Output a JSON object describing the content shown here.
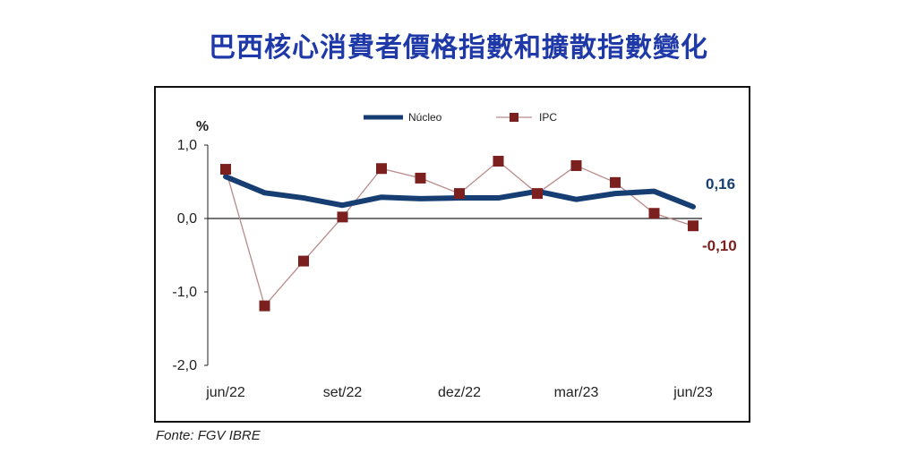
{
  "title": "巴西核心消費者價格指數和擴散指數變化",
  "source": "Fonte: FGV IBRE",
  "colors": {
    "title": "#1f3aa8",
    "nucleo": "#173e72",
    "ipc": "#7b1f1f",
    "ipc_line": "#b98a8a"
  },
  "chart_data": {
    "type": "line",
    "ylabel": "%",
    "ylim": [
      -2.0,
      1.0
    ],
    "yticks": [
      "1,0",
      "0,0",
      "-1,0",
      "-2,0"
    ],
    "ytick_values": [
      1.0,
      0.0,
      -1.0,
      -2.0
    ],
    "x": [
      "jun/22",
      "jul/22",
      "ago/22",
      "set/22",
      "out/22",
      "nov/22",
      "dez/22",
      "jan/23",
      "fev/23",
      "mar/23",
      "abr/23",
      "mai/23",
      "jun/23"
    ],
    "xtick_labels": [
      "jun/22",
      "set/22",
      "dez/22",
      "mar/23",
      "jun/23"
    ],
    "xtick_indices": [
      0,
      3,
      6,
      9,
      12
    ],
    "grid": false,
    "legend_position": "top",
    "series": [
      {
        "name": "Núcleo",
        "values": [
          0.57,
          0.35,
          0.28,
          0.18,
          0.29,
          0.27,
          0.28,
          0.28,
          0.37,
          0.26,
          0.34,
          0.37,
          0.16
        ]
      },
      {
        "name": "IPC",
        "values": [
          0.67,
          -1.19,
          -0.58,
          0.02,
          0.68,
          0.55,
          0.34,
          0.78,
          0.34,
          0.72,
          0.49,
          0.07,
          -0.1
        ]
      }
    ],
    "annotations": [
      {
        "series": "Núcleo",
        "text": "0,16"
      },
      {
        "series": "IPC",
        "text": "-0,10"
      }
    ]
  }
}
